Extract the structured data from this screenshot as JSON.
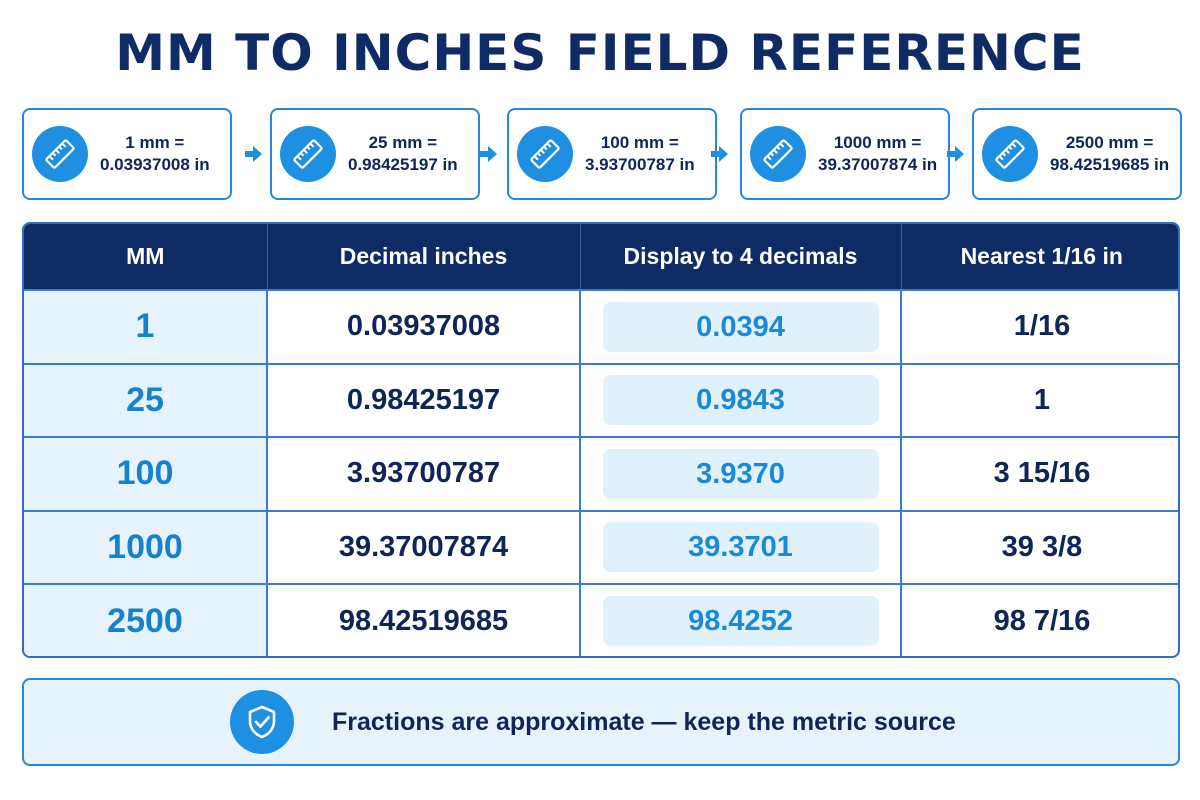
{
  "title": "MM TO INCHES FIELD REFERENCE",
  "steps": [
    {
      "mm": "1 mm =",
      "inches": "0.03937008 in",
      "icon": "ruler-icon"
    },
    {
      "mm": "25 mm =",
      "inches": "0.98425197 in",
      "icon": "ruler-icon"
    },
    {
      "mm": "100 mm =",
      "inches": "3.93700787 in",
      "icon": "ruler-icon"
    },
    {
      "mm": "1000 mm =",
      "inches": "39.37007874 in",
      "icon": "ruler-icon"
    },
    {
      "mm": "2500 mm =",
      "inches": "98.42519685 in",
      "icon": "ruler-icon"
    }
  ],
  "table": {
    "headers": [
      "MM",
      "Decimal inches",
      "Display to 4 decimals",
      "Nearest 1/16 in"
    ],
    "rows": [
      {
        "mm": "1",
        "decimal": "0.03937008",
        "display": "0.0394",
        "nearest": "1/16"
      },
      {
        "mm": "25",
        "decimal": "0.98425197",
        "display": "0.9843",
        "nearest": "1"
      },
      {
        "mm": "100",
        "decimal": "3.93700787",
        "display": "3.9370",
        "nearest": "3 15/16"
      },
      {
        "mm": "1000",
        "decimal": "39.37007874",
        "display": "39.3701",
        "nearest": "39 3/8"
      },
      {
        "mm": "2500",
        "decimal": "98.42519685",
        "display": "98.4252",
        "nearest": "98 7/16"
      }
    ]
  },
  "note": {
    "text": "Fractions are approximate — keep the metric source",
    "icon": "shield-check-icon"
  },
  "colors": {
    "navy": "#0f2b66",
    "accent": "#1e8fe1",
    "light": "#e6f3fc"
  }
}
